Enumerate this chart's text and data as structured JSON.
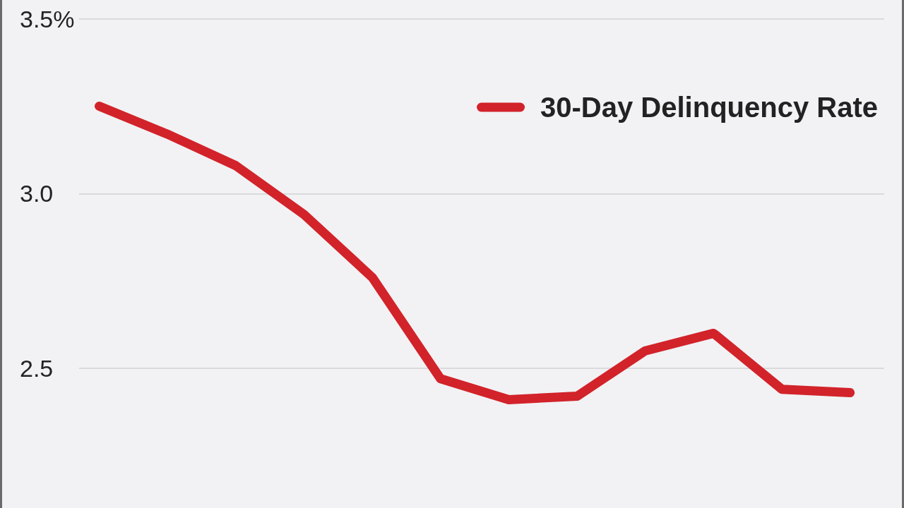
{
  "chart_data": {
    "type": "line",
    "categories": [
      null,
      null,
      null,
      null,
      null,
      null,
      null,
      null,
      null,
      null,
      null,
      null
    ],
    "series": [
      {
        "name": "30-Day Delinquency Rate",
        "color": "#d2232a",
        "values": [
          3.25,
          3.17,
          3.08,
          2.94,
          2.76,
          2.47,
          2.41,
          2.42,
          2.55,
          2.6,
          2.44,
          2.43
        ]
      }
    ],
    "ylim": [
      2.1,
      3.55
    ],
    "yticks": [
      2.5,
      {
        "value": 3,
        "label": "3.0"
      },
      {
        "value": 3.5,
        "label": "3.5%"
      }
    ],
    "grid": "y",
    "legend": "top right",
    "tick_labels": "y"
  }
}
